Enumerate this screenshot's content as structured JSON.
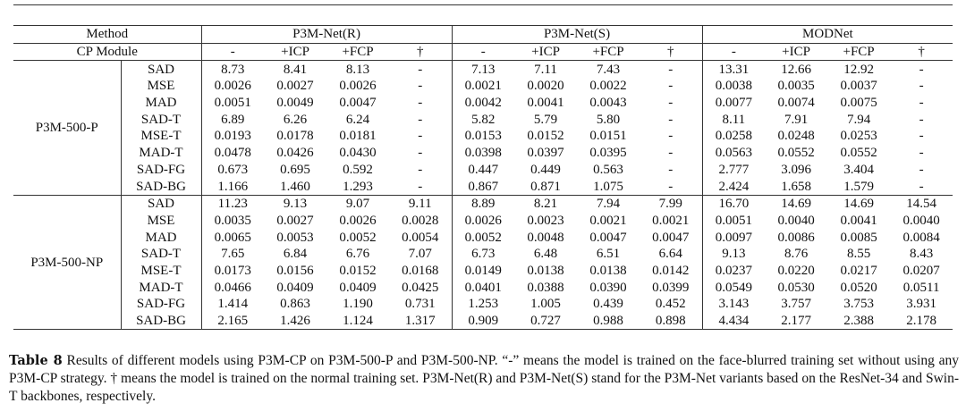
{
  "table": {
    "header": [
      "Method",
      "P3M-Net(R)",
      "P3M-Net(S)",
      "MODNet"
    ],
    "subheader": [
      "CP Module",
      "-",
      "+ICP",
      "+FCP",
      "†",
      "-",
      "+ICP",
      "+FCP",
      "†",
      "-",
      "+ICP",
      "+FCP",
      "†"
    ],
    "groups": [
      {
        "label": "P3M-500-P",
        "rows": [
          {
            "metric": "SAD",
            "values": [
              "8.73",
              "8.41",
              "8.13",
              "-",
              "7.13",
              "7.11",
              "7.43",
              "-",
              "13.31",
              "12.66",
              "12.92",
              "-"
            ]
          },
          {
            "metric": "MSE",
            "values": [
              "0.0026",
              "0.0027",
              "0.0026",
              "-",
              "0.0021",
              "0.0020",
              "0.0022",
              "-",
              "0.0038",
              "0.0035",
              "0.0037",
              "-"
            ]
          },
          {
            "metric": "MAD",
            "values": [
              "0.0051",
              "0.0049",
              "0.0047",
              "-",
              "0.0042",
              "0.0041",
              "0.0043",
              "-",
              "0.0077",
              "0.0074",
              "0.0075",
              "-"
            ]
          },
          {
            "metric": "SAD-T",
            "values": [
              "6.89",
              "6.26",
              "6.24",
              "-",
              "5.82",
              "5.79",
              "5.80",
              "-",
              "8.11",
              "7.91",
              "7.94",
              "-"
            ]
          },
          {
            "metric": "MSE-T",
            "values": [
              "0.0193",
              "0.0178",
              "0.0181",
              "-",
              "0.0153",
              "0.0152",
              "0.0151",
              "-",
              "0.0258",
              "0.0248",
              "0.0253",
              "-"
            ]
          },
          {
            "metric": "MAD-T",
            "values": [
              "0.0478",
              "0.0426",
              "0.0430",
              "-",
              "0.0398",
              "0.0397",
              "0.0395",
              "-",
              "0.0563",
              "0.0552",
              "0.0552",
              "-"
            ]
          },
          {
            "metric": "SAD-FG",
            "values": [
              "0.673",
              "0.695",
              "0.592",
              "-",
              "0.447",
              "0.449",
              "0.563",
              "-",
              "2.777",
              "3.096",
              "3.404",
              "-"
            ]
          },
          {
            "metric": "SAD-BG",
            "values": [
              "1.166",
              "1.460",
              "1.293",
              "-",
              "0.867",
              "0.871",
              "1.075",
              "-",
              "2.424",
              "1.658",
              "1.579",
              "-"
            ]
          }
        ]
      },
      {
        "label": "P3M-500-NP",
        "rows": [
          {
            "metric": "SAD",
            "values": [
              "11.23",
              "9.13",
              "9.07",
              "9.11",
              "8.89",
              "8.21",
              "7.94",
              "7.99",
              "16.70",
              "14.69",
              "14.69",
              "14.54"
            ]
          },
          {
            "metric": "MSE",
            "values": [
              "0.0035",
              "0.0027",
              "0.0026",
              "0.0028",
              "0.0026",
              "0.0023",
              "0.0021",
              "0.0021",
              "0.0051",
              "0.0040",
              "0.0041",
              "0.0040"
            ]
          },
          {
            "metric": "MAD",
            "values": [
              "0.0065",
              "0.0053",
              "0.0052",
              "0.0054",
              "0.0052",
              "0.0048",
              "0.0047",
              "0.0047",
              "0.0097",
              "0.0086",
              "0.0085",
              "0.0084"
            ]
          },
          {
            "metric": "SAD-T",
            "values": [
              "7.65",
              "6.84",
              "6.76",
              "7.07",
              "6.73",
              "6.48",
              "6.51",
              "6.64",
              "9.13",
              "8.76",
              "8.55",
              "8.43"
            ]
          },
          {
            "metric": "MSE-T",
            "values": [
              "0.0173",
              "0.0156",
              "0.0152",
              "0.0168",
              "0.0149",
              "0.0138",
              "0.0138",
              "0.0142",
              "0.0237",
              "0.0220",
              "0.0217",
              "0.0207"
            ]
          },
          {
            "metric": "MAD-T",
            "values": [
              "0.0466",
              "0.0409",
              "0.0409",
              "0.0425",
              "0.0401",
              "0.0388",
              "0.0390",
              "0.0399",
              "0.0549",
              "0.0530",
              "0.0520",
              "0.0511"
            ]
          },
          {
            "metric": "SAD-FG",
            "values": [
              "1.414",
              "0.863",
              "1.190",
              "0.731",
              "1.253",
              "1.005",
              "0.439",
              "0.452",
              "3.143",
              "3.757",
              "3.753",
              "3.931"
            ]
          },
          {
            "metric": "SAD-BG",
            "values": [
              "2.165",
              "1.426",
              "1.124",
              "1.317",
              "0.909",
              "0.727",
              "0.988",
              "0.898",
              "4.434",
              "2.177",
              "2.388",
              "2.178"
            ]
          }
        ]
      }
    ]
  },
  "caption": {
    "label": "Table 8",
    "text": "Results of different models using P3M-CP on P3M-500-P and P3M-500-NP. “-” means the model is trained on the face-blurred training set without using any P3M-CP strategy. † means the model is trained on the normal training set. P3M-Net(R) and P3M-Net(S) stand for the P3M-Net variants based on the ResNet-34 and Swin-T backbones, respectively."
  }
}
